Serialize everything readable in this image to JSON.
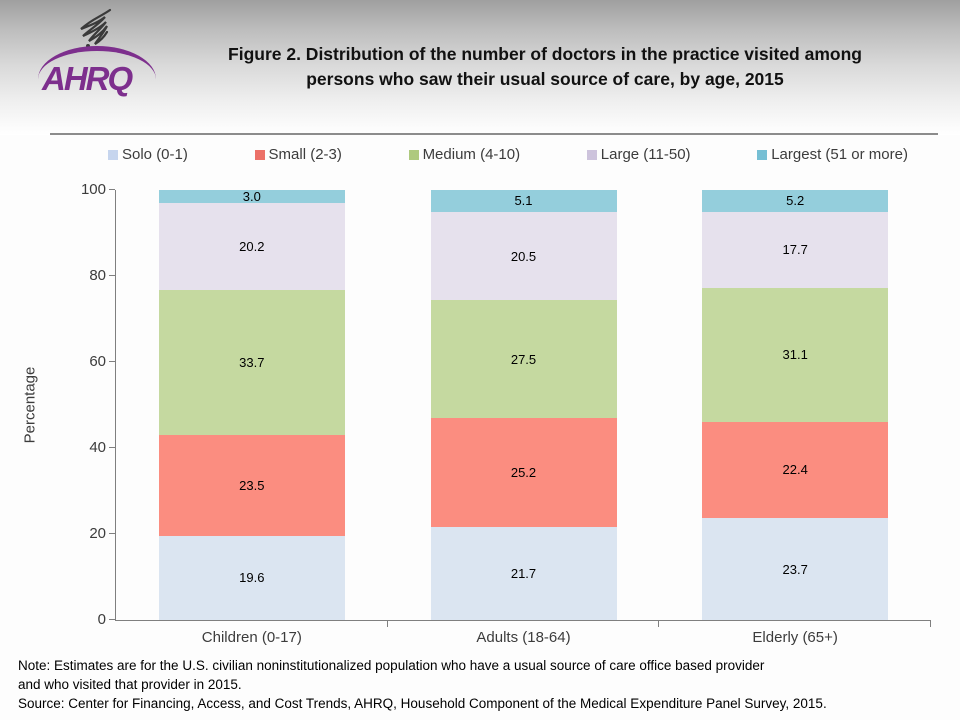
{
  "header": {
    "logo_text": "AHRQ",
    "title_line1": "Figure 2. Distribution of the number of doctors in the practice visited among",
    "title_line2": "persons who saw their usual source of care, by age, 2015"
  },
  "legend": [
    {
      "label": "Solo (0-1)",
      "color": "#c6d5ee"
    },
    {
      "label": "Small (2-3)",
      "color": "#ec7168"
    },
    {
      "label": "Medium (4-10)",
      "color": "#aec97e"
    },
    {
      "label": "Large (11-50)",
      "color": "#cdc3dc"
    },
    {
      "label": "Largest (51 or more)",
      "color": "#76bfd4"
    }
  ],
  "chart_data": {
    "type": "bar",
    "stacked": true,
    "categories": [
      "Children (0-17)",
      "Adults (18-64)",
      "Elderly (65+)"
    ],
    "series": [
      {
        "name": "Solo (0-1)",
        "color": "#dbe5f1",
        "values": [
          19.6,
          21.7,
          23.7
        ]
      },
      {
        "name": "Small (2-3)",
        "color": "#fb8d80",
        "values": [
          23.5,
          25.2,
          22.4
        ]
      },
      {
        "name": "Medium (4-10)",
        "color": "#c5d9a0",
        "values": [
          33.7,
          27.5,
          31.1
        ]
      },
      {
        "name": "Large (11-50)",
        "color": "#e6e1ed",
        "values": [
          20.2,
          20.5,
          17.7
        ]
      },
      {
        "name": "Largest (51 or more)",
        "color": "#94cedc",
        "values": [
          3.0,
          5.1,
          5.2
        ]
      }
    ],
    "title": "Figure 2. Distribution of the number of doctors in the practice visited among persons who saw their usual source of care, by age, 2015",
    "xlabel": "",
    "ylabel": "Percentage",
    "ylim": [
      0,
      100
    ],
    "yticks": [
      0,
      20,
      40,
      60,
      80,
      100
    ],
    "legend_position": "top",
    "grid": false
  },
  "footer": {
    "note_line1": "Note: Estimates are for the U.S. civilian noninstitutionalized population who have a usual source of care office based provider",
    "note_line2": "and who visited that provider in 2015.",
    "source": "Source: Center for Financing, Access, and Cost Trends, AHRQ, Household Component of the Medical Expenditure Panel Survey, 2015."
  }
}
